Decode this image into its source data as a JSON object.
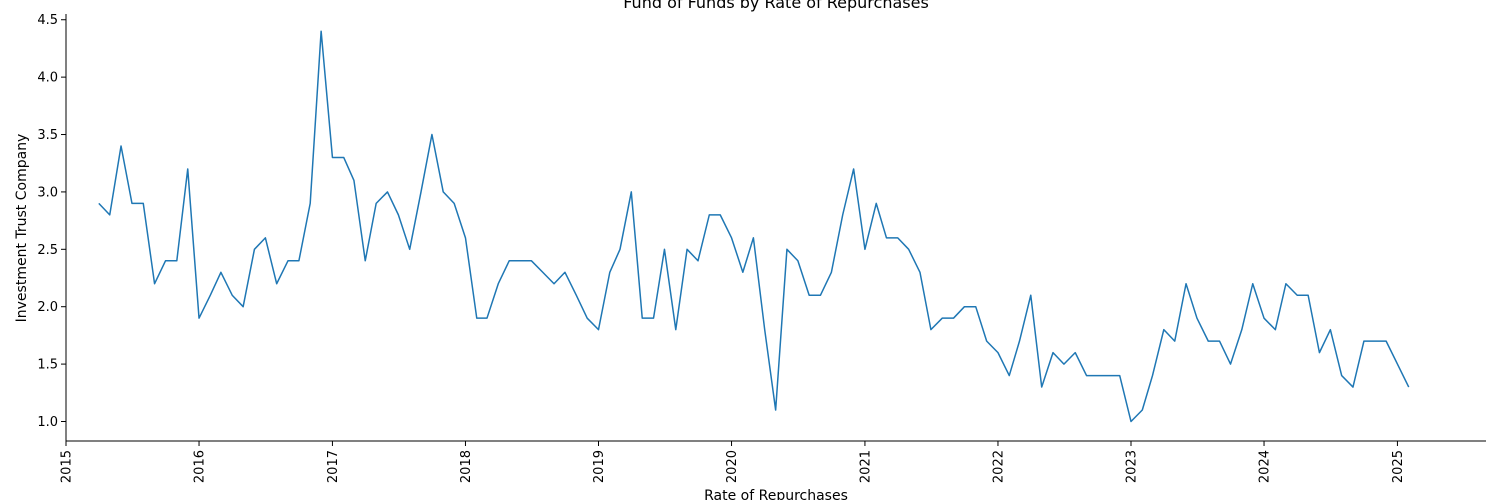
{
  "chart_data": {
    "type": "line",
    "title": "Fund of Funds by Rate of Repurchases",
    "xlabel": "Rate of Repurchases",
    "ylabel": "Investment Trust Company",
    "xlim": [
      "2015-01-01",
      "2025-09-01"
    ],
    "ylim": [
      0.83,
      4.55
    ],
    "x_ticks": [
      "2015",
      "2016",
      "2017",
      "2018",
      "2019",
      "2020",
      "2021",
      "2022",
      "2023",
      "2024",
      "2025"
    ],
    "y_ticks": [
      "1.0",
      "1.5",
      "2.0",
      "2.5",
      "3.0",
      "3.5",
      "4.0",
      "4.5"
    ],
    "grid": false,
    "line_color": "#1f77b4",
    "series": [
      {
        "x": [
          "2015-04",
          "2015-05",
          "2015-06",
          "2015-07",
          "2015-08",
          "2015-09",
          "2015-10",
          "2015-11",
          "2015-12",
          "2016-01",
          "2016-02",
          "2016-03",
          "2016-04",
          "2016-05",
          "2016-06",
          "2016-07",
          "2016-08",
          "2016-09",
          "2016-10",
          "2016-11",
          "2016-12",
          "2017-01",
          "2017-02",
          "2017-03",
          "2017-04",
          "2017-05",
          "2017-06",
          "2017-07",
          "2017-08",
          "2017-09",
          "2017-10",
          "2017-11",
          "2017-12",
          "2018-01",
          "2018-02",
          "2018-03",
          "2018-04",
          "2018-05",
          "2018-06",
          "2018-07",
          "2018-08",
          "2018-09",
          "2018-10",
          "2018-11",
          "2018-12",
          "2019-01",
          "2019-02",
          "2019-03",
          "2019-04",
          "2019-05",
          "2019-06",
          "2019-07",
          "2019-08",
          "2019-09",
          "2019-10",
          "2019-11",
          "2019-12",
          "2020-01",
          "2020-02",
          "2020-03",
          "2020-04",
          "2020-05",
          "2020-06",
          "2020-07",
          "2020-08",
          "2020-09",
          "2020-10",
          "2020-11",
          "2020-12",
          "2021-01",
          "2021-02",
          "2021-03",
          "2021-04",
          "2021-05",
          "2021-06",
          "2021-07",
          "2021-08",
          "2021-09",
          "2021-10",
          "2021-11",
          "2021-12",
          "2022-01",
          "2022-02",
          "2022-03",
          "2022-04",
          "2022-05",
          "2022-06",
          "2022-07",
          "2022-08",
          "2022-09",
          "2022-10",
          "2022-11",
          "2022-12",
          "2023-01",
          "2023-02",
          "2023-03",
          "2023-04",
          "2023-05",
          "2023-06",
          "2023-07",
          "2023-08",
          "2023-09",
          "2023-10",
          "2023-11",
          "2023-12",
          "2024-01",
          "2024-02",
          "2024-03",
          "2024-04",
          "2024-05",
          "2024-06",
          "2024-07",
          "2024-08",
          "2024-09",
          "2024-10",
          "2024-11",
          "2024-12",
          "2025-01",
          "2025-02"
        ],
        "values": [
          2.9,
          2.8,
          3.4,
          2.9,
          2.9,
          2.2,
          2.4,
          2.4,
          3.2,
          1.9,
          2.1,
          2.3,
          2.1,
          2.0,
          2.5,
          2.6,
          2.2,
          2.4,
          2.4,
          2.9,
          4.4,
          3.3,
          3.3,
          3.1,
          2.4,
          2.9,
          3.0,
          2.8,
          2.5,
          3.0,
          3.5,
          3.0,
          2.9,
          2.6,
          1.9,
          1.9,
          2.2,
          2.4,
          2.4,
          2.4,
          2.3,
          2.2,
          2.3,
          2.1,
          1.9,
          1.8,
          2.3,
          2.5,
          3.0,
          1.9,
          1.9,
          2.5,
          1.8,
          2.5,
          2.4,
          2.8,
          2.8,
          2.6,
          2.3,
          2.6,
          1.8,
          1.1,
          2.5,
          2.4,
          2.1,
          2.1,
          2.3,
          2.8,
          3.2,
          2.5,
          2.9,
          2.6,
          2.6,
          2.5,
          2.3,
          1.8,
          1.9,
          1.9,
          2.0,
          2.0,
          1.7,
          1.6,
          1.4,
          1.7,
          2.1,
          1.3,
          1.6,
          1.5,
          1.6,
          1.4,
          1.4,
          1.4,
          1.4,
          1.0,
          1.1,
          1.4,
          1.8,
          1.7,
          2.2,
          1.9,
          1.7,
          1.7,
          1.5,
          1.8,
          2.2,
          1.9,
          1.8,
          2.2,
          2.1,
          2.1,
          1.6,
          1.8,
          1.4,
          1.3,
          1.7,
          1.7,
          1.7,
          1.5,
          1.3
        ]
      }
    ]
  }
}
